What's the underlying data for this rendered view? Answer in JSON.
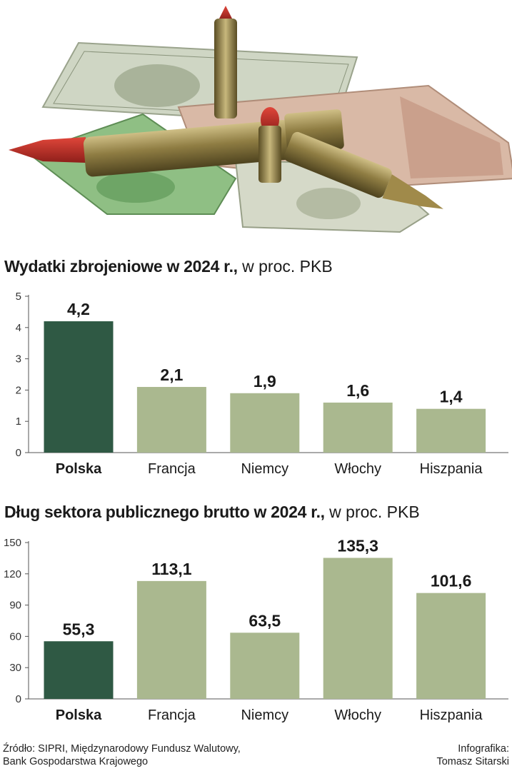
{
  "colors": {
    "highlight": "#2f5944",
    "bar": "#aab88f",
    "axis": "#555555"
  },
  "chart_data": [
    {
      "type": "bar",
      "title": "Wydatki zbrojeniowe w 2024 r.,",
      "subtitle": "w proc. PKB",
      "categories": [
        "Polska",
        "Francja",
        "Niemcy",
        "Włochy",
        "Hiszpania"
      ],
      "values": [
        4.2,
        2.1,
        1.9,
        1.6,
        1.4
      ],
      "value_labels": [
        "4,2",
        "2,1",
        "1,9",
        "1,6",
        "1,4"
      ],
      "yticks": [
        0,
        1,
        2,
        3,
        4,
        5
      ],
      "ylim": [
        0,
        5
      ],
      "highlight": "Polska",
      "grid": false,
      "legend": "none"
    },
    {
      "type": "bar",
      "title": "Dług sektora publicznego brutto w 2024 r.,",
      "subtitle": "w proc. PKB",
      "categories": [
        "Polska",
        "Francja",
        "Niemcy",
        "Włochy",
        "Hiszpania"
      ],
      "values": [
        55.3,
        113.1,
        63.5,
        135.3,
        101.6
      ],
      "value_labels": [
        "55,3",
        "113,1",
        "63,5",
        "135,3",
        "101,6"
      ],
      "yticks": [
        0,
        30,
        60,
        90,
        120,
        150
      ],
      "ylim": [
        0,
        150
      ],
      "highlight": "Polska",
      "grid": false,
      "legend": "none"
    }
  ],
  "footer": {
    "source_line1": "Źródło: SIPRI, Międzynarodowy Fundusz Walutowy,",
    "source_line2": "Bank Gospodarstwa Krajowego",
    "credit_line1": "Infografika:",
    "credit_line2": "Tomasz Sitarski"
  }
}
